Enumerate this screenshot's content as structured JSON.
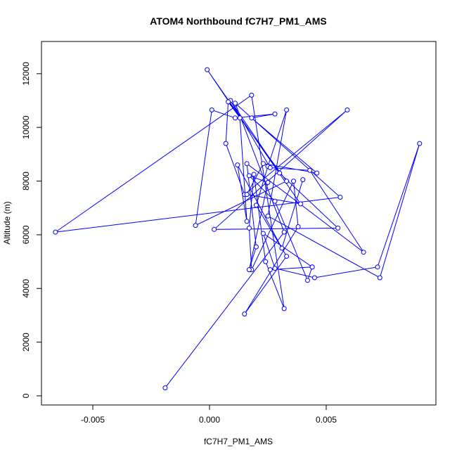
{
  "chart_data": {
    "type": "line",
    "title": "ATOM4 Northbound fC7H7_PM1_AMS",
    "xlabel": "fC7H7_PM1_AMS",
    "ylabel": "Altitude (m)",
    "xlim": [
      -0.0072,
      0.0097
    ],
    "ylim": [
      -340,
      13200
    ],
    "x_ticks": [
      -0.005,
      0.0,
      0.005
    ],
    "x_tick_labels": [
      "-0.005",
      "0.000",
      "0.005"
    ],
    "y_ticks": [
      0,
      2000,
      4000,
      6000,
      8000,
      10000,
      12000
    ],
    "y_tick_labels": [
      "0",
      "2000",
      "4000",
      "6000",
      "8000",
      "10000",
      "12000"
    ],
    "grid": false,
    "series": [
      {
        "color": "#0000ff",
        "marker": "open-circle",
        "x": [
          -0.0019,
          0.0032,
          0.0011,
          0.0056,
          -0.0066,
          0.0018,
          0.0032,
          0.0024,
          0.0019,
          0.0017,
          0.0018,
          0.0036,
          0.0038,
          0.0015,
          0.0033,
          0.002,
          0.0025,
          0.0033,
          0.0025,
          0.0073,
          0.009,
          0.0072,
          0.0045,
          0.0028,
          0.0023,
          0.0044,
          0.0026,
          0.0044,
          0.0042,
          0.0028,
          0.0017,
          0.0025,
          0.0017,
          0.002,
          0.0016,
          0.0066,
          0.0043,
          0.0026,
          0.0009,
          0.003,
          0.0055,
          0.0002,
          0.0059,
          0.0015,
          0.0007,
          0.0008,
          0.0033,
          -0.0006,
          0.0001,
          0.0011,
          0.0028,
          0.0018,
          0.0046,
          0.0023,
          0.0016,
          0.0039,
          -0.0001,
          0.0013,
          0.0016,
          0.0012,
          0.0031,
          0.004
        ],
        "y": [
          300,
          6100,
          10900,
          7400,
          6100,
          11200,
          3250,
          5000,
          8250,
          6250,
          4700,
          8000,
          6300,
          3050,
          5200,
          7100,
          8550,
          10650,
          6700,
          4400,
          9400,
          4800,
          4400,
          4750,
          6050,
          4800,
          4700,
          4800,
          4300,
          7250,
          8200,
          7950,
          4700,
          5550,
          8650,
          5350,
          8400,
          8500,
          11000,
          8300,
          6250,
          6200,
          10650,
          7500,
          9400,
          10950,
          8000,
          6350,
          10650,
          10350,
          10500,
          10350,
          8300,
          8650,
          7500,
          7150,
          12150,
          10350,
          6500,
          8600,
          5500,
          8050
        ]
      }
    ]
  }
}
